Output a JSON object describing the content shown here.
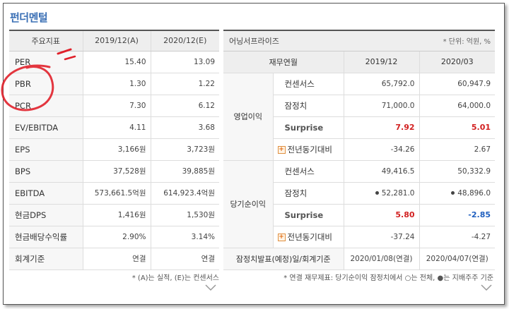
{
  "title": "펀더멘털",
  "left": {
    "headers": [
      "주요지표",
      "2019/12(A)",
      "2020/12(E)"
    ],
    "rows": [
      {
        "label": "PER",
        "v1": "15.40",
        "v2": "13.09"
      },
      {
        "label": "PBR",
        "v1": "1.30",
        "v2": "1.22"
      },
      {
        "label": "PCR",
        "v1": "7.30",
        "v2": "6.12"
      },
      {
        "label": "EV/EBITDA",
        "v1": "4.11",
        "v2": "3.68"
      },
      {
        "label": "EPS",
        "v1": "3,166원",
        "v2": "3,723원"
      },
      {
        "label": "BPS",
        "v1": "37,528원",
        "v2": "39,885원"
      },
      {
        "label": "EBITDA",
        "v1": "573,661.5억원",
        "v2": "614,923.4억원"
      },
      {
        "label": "현금DPS",
        "v1": "1,416원",
        "v2": "1,530원"
      },
      {
        "label": "현금배당수익률",
        "v1": "2.90%",
        "v2": "3.14%"
      },
      {
        "label": "회계기준",
        "v1": "연결",
        "v2": "연결"
      }
    ],
    "note": "* (A)는 실적, (E)는 컨센서스"
  },
  "right": {
    "title": "어닝서프라이즈",
    "unit": "* 단위: 억원, %",
    "col_headers": [
      "재무연월",
      "2019/12",
      "2020/03"
    ],
    "groups": [
      {
        "name": "영업이익",
        "rows": [
          {
            "label": "컨센서스",
            "v1": "65,792.0",
            "v2": "60,947.9"
          },
          {
            "label": "잠정치",
            "v1": "71,000.0",
            "v2": "64,000.0"
          },
          {
            "label": "Surprise",
            "v1": "7.92",
            "v2": "5.01"
          },
          {
            "label": "전년동기대비",
            "v1": "-34.26",
            "v2": "2.67"
          }
        ]
      },
      {
        "name": "당기순이익",
        "rows": [
          {
            "label": "컨센서스",
            "v1": "49,416.5",
            "v2": "50,332.9"
          },
          {
            "label": "잠정치",
            "v1": "52,281.0",
            "v2": "48,896.0"
          },
          {
            "label": "Surprise",
            "v1": "5.80",
            "v2": "-2.85"
          },
          {
            "label": "전년동기대비",
            "v1": "-37.24",
            "v2": "-4.27"
          }
        ]
      }
    ],
    "footer": {
      "label": "잠정치발표(예정)일/회계기준",
      "v1": "2020/01/08(연결)",
      "v2": "2020/04/07(연결)"
    },
    "note": "* 연결 재무제표: 당기순이익 잠정치에서 ○는 전체, ●는 지배주주 기준"
  },
  "colors": {
    "title": "#3a6fb5",
    "surprise_pos": "#d21f1f",
    "surprise_neg": "#1f5fbf",
    "annotation": "#e0202a"
  }
}
